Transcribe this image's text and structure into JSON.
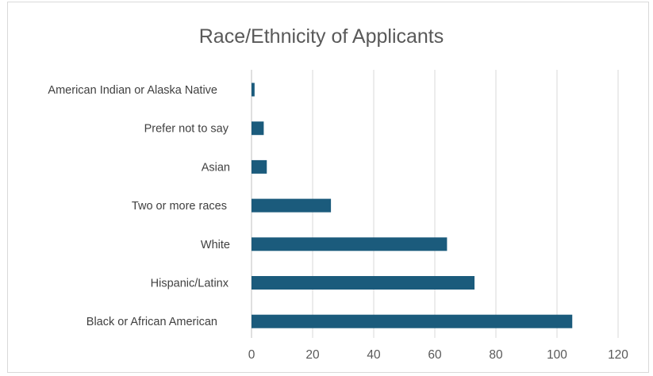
{
  "chart_data": {
    "type": "bar",
    "orientation": "horizontal",
    "title": "Race/Ethnicity of Applicants",
    "xlabel": "",
    "ylabel": "",
    "categories": [
      "American Indian or Alaska Native",
      "Prefer not to say",
      "Asian",
      "Two or more races",
      "White",
      "Hispanic/Latinx",
      "Black or African American"
    ],
    "values": [
      1,
      4,
      5,
      26,
      64,
      73,
      105
    ],
    "xlim": [
      0,
      120
    ],
    "xticks": [
      0,
      20,
      40,
      60,
      80,
      100,
      120
    ],
    "grid": true,
    "legend": "none",
    "bar_color": "#1b5b7c"
  }
}
